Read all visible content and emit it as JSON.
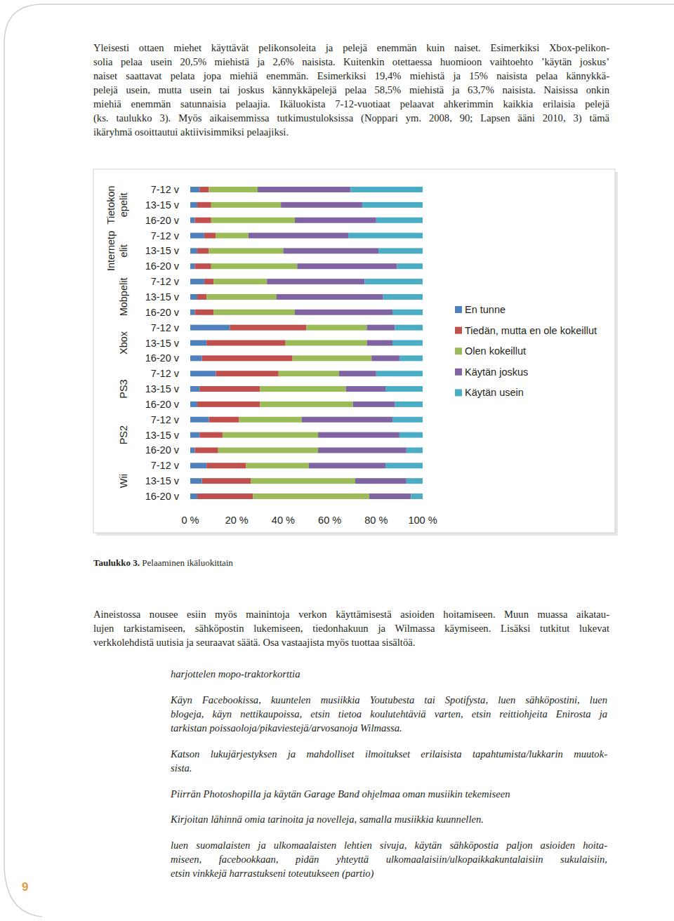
{
  "intro_lines": [
    "Yleisesti ottaen miehet käyttävät pelikonsoleita ja pelejä enemmän kuin naiset. Esimerkiksi Xbox-pelikon-",
    "solia pelaa usein 20,5% miehistä ja 2,6% naisista. Kuitenkin otettaessa huomioon vaihtoehto ’käytän joskus’",
    "naiset saattavat pelata jopa miehiä enemmän. Esimerkiksi 19,4% miehistä ja 15% naisista pelaa kännykkä-",
    "pelejä usein, mutta usein tai joskus kännykkäpelejä pelaa 58,5% miehistä ja 63,7% naisista. Naisissa onkin",
    "miehiä enemmän satunnaisia pelaajia. Ikäluokista 7-12-vuotiaat pelaavat ahkerimmin kaikkia erilaisia pelejä",
    "(ks. taulukko 3). Myös aikaisemmissa tutkimustuloksissa (Noppari ym. 2008, 90; Lapsen ääni 2010, 3) tämä",
    "ikäryhmä osoittautui aktiivisimmiksi pelaajiksi."
  ],
  "chart_data": {
    "type": "bar",
    "orientation": "horizontal",
    "stacked": true,
    "grid": false,
    "legend": "right",
    "categories": [
      "7-12 v",
      "13-15 v",
      "16-20 v",
      "7-12 v",
      "13-15 v",
      "16-20 v",
      "7-12 v",
      "13-15 v",
      "16-20 v",
      "7-12 v",
      "13-15 v",
      "16-20 v",
      "7-12 v",
      "13-15 v",
      "16-20 v",
      "7-12 v",
      "13-15 v",
      "16-20 v",
      "7-12 v",
      "13-15 v",
      "16-20 v"
    ],
    "groups": [
      {
        "label": [
          "Tietokon",
          "epelit"
        ]
      },
      {
        "label": [
          "Internetp",
          "elit"
        ]
      },
      {
        "label": [
          "Mobpelit"
        ]
      },
      {
        "label": [
          "Xbox"
        ]
      },
      {
        "label": [
          "PS3"
        ]
      },
      {
        "label": [
          "PS2"
        ]
      },
      {
        "label": [
          "Wii"
        ]
      }
    ],
    "xlim": [
      0,
      100
    ],
    "xticks": [
      {
        "value": 0,
        "label": "0 %"
      },
      {
        "value": 20,
        "label": "20 %"
      },
      {
        "value": 40,
        "label": "40 %"
      },
      {
        "value": 60,
        "label": "60 %"
      },
      {
        "value": 80,
        "label": "80 %"
      },
      {
        "value": 100,
        "label": "100 %"
      }
    ],
    "series": [
      {
        "name": "En tunne",
        "color": "#4f81bd",
        "values": [
          4,
          3,
          2,
          6,
          3,
          2,
          6,
          3,
          2,
          17,
          7,
          5,
          11,
          4,
          3,
          8,
          4,
          2,
          7,
          5,
          3
        ]
      },
      {
        "name": "Tiedän, mutta en ole kokeillut",
        "color": "#c0504d",
        "values": [
          4,
          6,
          7,
          5,
          5,
          7,
          4,
          4,
          8,
          33,
          34,
          39,
          27,
          26,
          27,
          13,
          10,
          10,
          17,
          21,
          24
        ]
      },
      {
        "name": "Olen kokeillut",
        "color": "#9bbb59",
        "values": [
          21,
          30,
          36,
          14,
          32,
          37,
          23,
          30,
          35,
          26,
          35,
          34,
          26,
          37,
          40,
          27,
          41,
          43,
          27,
          45,
          50
        ]
      },
      {
        "name": "Käytän joskus",
        "color": "#8064a2",
        "values": [
          40,
          35,
          35,
          43,
          41,
          43,
          42,
          46,
          42,
          12,
          11,
          12,
          16,
          17,
          18,
          39,
          35,
          38,
          33,
          22,
          18
        ]
      },
      {
        "name": "Käytän usein",
        "color": "#4bacc6",
        "values": [
          31,
          26,
          20,
          32,
          19,
          11,
          25,
          17,
          13,
          12,
          13,
          10,
          20,
          16,
          12,
          13,
          10,
          7,
          16,
          7,
          5
        ]
      }
    ]
  },
  "caption": {
    "label": "Taulukko 3.",
    "text": "Pelaaminen ikäluokittain"
  },
  "body_lines": [
    "Aineistossa nousee esiin myös mainintoja verkon käyttämisestä asioiden hoitamiseen. Muun muassa aikatau-",
    "lujen tarkistamiseen, sähköpostin lukemiseen, tiedonhakuun ja Wilmassa käymiseen. Lisäksi tutkitut lukevat",
    "verkkolehdistä uutisia ja seuraavat säätä. Osa vastaajista myös tuottaa sisältöä."
  ],
  "quotes": [
    [
      "harjottelen mopo-traktorkorttia"
    ],
    [
      "Käyn Facebookissa, kuuntelen musiikkia Youtubesta tai Spotifysta, luen sähköpostini, luen",
      "blogeja, käyn nettikaupoissa, etsin tietoa koulutehtäviä varten, etsin reittiohjeita Enirosta ja",
      "tarkistan poissaoloja/pikaviestejä/arvosanoja Wilmassa."
    ],
    [
      "Katson lukujärjestyksen ja mahdolliset ilmoitukset erilaisista tapahtumista/lukkarin muutok-",
      "sista."
    ],
    [
      "Piirrän Photoshopilla ja käytän Garage Band ohjelmaa oman musiikin tekemiseen"
    ],
    [
      "Kirjoitan lähinnä omia tarinoita ja novelleja, samalla musiikkia kuunnellen."
    ],
    [
      "luen suomalaisten ja ulkomaalaisten lehtien sivuja, käytän sähköpostia paljon asioiden hoita-",
      "miseen, facebookkaan, pidän yhteyttä ulkomaalaisiin/ulkopaikkakuntalaisiin sukulaisiin,",
      "etsin vinkkejä harrastukseni toteutukseen (partio)"
    ]
  ],
  "page_number": 9
}
